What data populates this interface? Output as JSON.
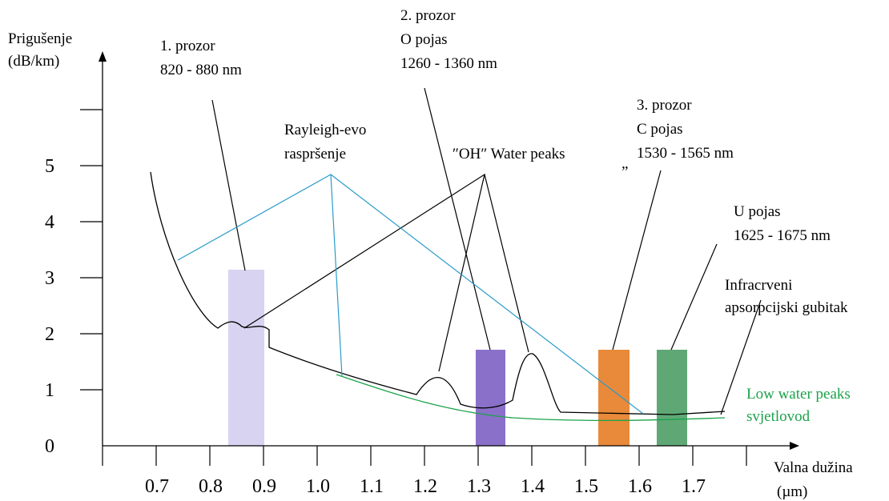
{
  "axes": {
    "y_label": [
      "Prigušenje",
      "(dB/km)"
    ],
    "x_label": [
      "Valna dužina",
      "(µm)"
    ],
    "y_ticks": [
      "0",
      "1",
      "2",
      "3",
      "4",
      "5"
    ],
    "x_ticks": [
      "0.7",
      "0.8",
      "0.9",
      "1.0",
      "1.1",
      "1.2",
      "1.3",
      "1.4",
      "1.5",
      "1.6",
      "1.7"
    ]
  },
  "annotations": {
    "window1": [
      "1. prozor",
      "820 - 880 nm"
    ],
    "window2": [
      "2. prozor",
      "O pojas",
      "1260 - 1360 nm"
    ],
    "window3": [
      "3. prozor",
      "C pojas",
      "1530 - 1565 nm"
    ],
    "quote_mark": "„",
    "u_band": [
      "U pojas",
      "1625 - 1675 nm"
    ],
    "rayleigh": [
      "Rayleigh-evo",
      "raspršenje"
    ],
    "oh_peaks": "″OH″ Water peaks",
    "infrared": [
      "Infracrveni",
      "apsorpcijski gubitak"
    ],
    "low_water": [
      "Low water peaks",
      "svjetlovod"
    ]
  }
}
